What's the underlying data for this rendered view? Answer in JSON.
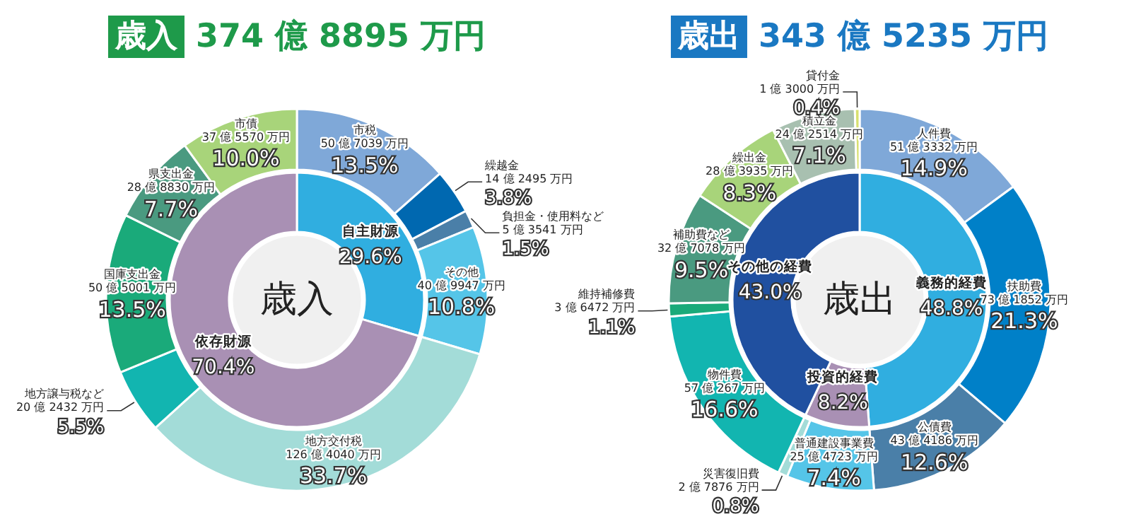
{
  "chart_data": [
    {
      "type": "donut",
      "title": "歳入",
      "subtitle": "374 億 8895 万円",
      "categories": [
        "市税\n50 億 7039 万円",
        "繰越金\n14 億 2495 万円",
        "負担金・使用料など\n5 億 3541 万円",
        "その他\n40 億 9947 万円",
        "地方交付税\n126 億 4040 万円",
        "地方譲与税など\n20 億 2432 万円",
        "国庫支出金\n50 億 5001 万円",
        "県支出金\n28 億 8830 万円",
        "市債\n37 億 5570 万円"
      ],
      "values": [
        13.5,
        3.8,
        1.5,
        10.8,
        33.7,
        5.5,
        13.5,
        7.7,
        10.0
      ],
      "value_labels": [
        "13.5%",
        "3.8%",
        "1.5%",
        "10.8%",
        "33.7%",
        "5.5%",
        "13.5%",
        "7.7%",
        "10.0%"
      ],
      "colors": [
        "#7fa8d8",
        "#0068b0",
        "#4a7fa8",
        "#55c5e8",
        "#a3dcd8",
        "#12b5b0",
        "#1aaa7a",
        "#4a9a80",
        "#a8d47a"
      ]
    },
    {
      "type": "donut",
      "title": "歳入",
      "categories": [
        "自主財源",
        "依存財源"
      ],
      "values": [
        29.6,
        70.4
      ],
      "value_labels": [
        "29.6%",
        "70.4%"
      ],
      "colors": [
        "#30aee0",
        "#a990b4"
      ]
    },
    {
      "type": "donut",
      "title": "歳出",
      "subtitle": "343 億 5235 万円",
      "categories": [
        "人件費\n51 億 3332 万円",
        "扶助費\n73 億 1852 万円",
        "公債費\n43 億 4186 万円",
        "普通建設事業費\n25 億 4723 万円",
        "災害復旧費\n2 億 7876 万円",
        "物件費\n57 億 267 万円",
        "維持補修費\n3 億 6472 万円",
        "補助費など\n32 億 7078 万円",
        "繰出金\n28 億 3935 万円",
        "積立金\n24 億 2514 万円",
        "貸付金\n1 億 3000 万円"
      ],
      "values": [
        14.9,
        21.3,
        12.6,
        7.4,
        0.8,
        16.6,
        1.1,
        9.5,
        8.3,
        7.1,
        0.4
      ],
      "value_labels": [
        "14.9%",
        "21.3%",
        "12.6%",
        "7.4%",
        "0.8%",
        "16.6%",
        "1.1%",
        "9.5%",
        "8.3%",
        "7.1%",
        "0.4%"
      ],
      "colors": [
        "#7fa8d8",
        "#0080c8",
        "#4a7fa8",
        "#55c5e8",
        "#a3dcd8",
        "#12b5b0",
        "#1aaa7a",
        "#4a9a80",
        "#a8d47a",
        "#a8c0b0",
        "#d8e070"
      ]
    },
    {
      "type": "donut",
      "title": "歳出",
      "categories": [
        "義務的経費",
        "投資的経費",
        "その他の経費"
      ],
      "values": [
        48.8,
        8.2,
        43.0
      ],
      "value_labels": [
        "48.8%",
        "8.2%",
        "43.0%"
      ],
      "colors": [
        "#30aee0",
        "#a990b4",
        "#2050a0"
      ]
    }
  ]
}
